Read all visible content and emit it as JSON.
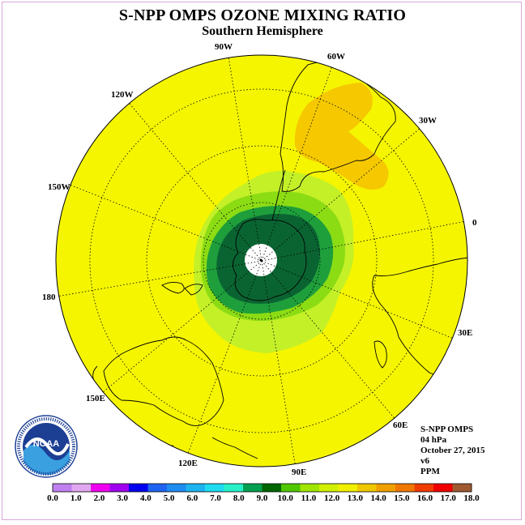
{
  "title": "S-NPP OMPS OZONE MIXING RATIO",
  "subtitle": "Southern Hemisphere",
  "longitude_labels": {
    "w90": "90W",
    "w60": "60W",
    "w30": "30W",
    "w120": "120W",
    "w150": "150W",
    "e0": "0",
    "d180": "180",
    "e30": "30E",
    "e60": "60E",
    "e90": "90E",
    "e120": "120E",
    "e150": "150E"
  },
  "info": {
    "instrument": "S-NPP OMPS",
    "level": "04 hPa",
    "date": "October 27, 2015",
    "version": "v6",
    "units": "PPM"
  },
  "logo": {
    "text": "NOAA",
    "ring_text": "NATIONAL OCEANIC AND ATMOSPHERIC ADMINISTRATION · U.S. DEPARTMENT OF COMMERCE"
  },
  "colorbar": {
    "colors": [
      "#c080f0",
      "#e0a8f0",
      "#f000f0",
      "#a000f0",
      "#0000f0",
      "#1e64f0",
      "#1e8cf0",
      "#1eb4f0",
      "#1edcf0",
      "#28f0c8",
      "#00a050",
      "#006400",
      "#50c800",
      "#a0e600",
      "#d0f000",
      "#f0f000",
      "#f0c800",
      "#f0a000",
      "#f07800",
      "#f03c00",
      "#f00000",
      "#a05a32"
    ],
    "tick_labels": [
      "0.0",
      "1.0",
      "2.0",
      "3.0",
      "4.0",
      "5.0",
      "6.0",
      "7.0",
      "8.0",
      "9.0",
      "10.0",
      "11.0",
      "12.0",
      "13.0",
      "14.0",
      "15.0",
      "16.0",
      "17.0",
      "18.0"
    ]
  },
  "colors": {
    "background_field": "#f5f500",
    "orange_region": "#f5c800",
    "light_green": "#b4ee14",
    "mid_green": "#8cdc14",
    "green": "#1e9f3c",
    "dark_green": "#0a6432",
    "coast": "#000000"
  }
}
